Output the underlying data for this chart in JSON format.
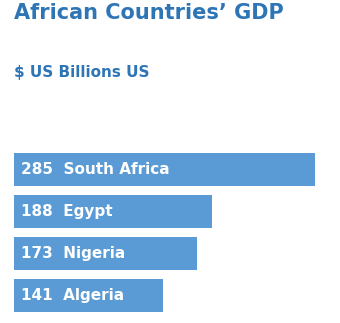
{
  "title": "African Countries’ GDP",
  "subtitle": "$ US Billions US",
  "countries": [
    "South Africa",
    "Egypt",
    "Nigeria",
    "Algeria"
  ],
  "values": [
    285,
    188,
    173,
    141
  ],
  "max_value": 285,
  "bar_color": "#5B9BD5",
  "title_color": "#2E75B6",
  "subtitle_color": "#2E75B6",
  "label_color": "#FFFFFF",
  "background_color": "#FFFFFF",
  "title_fontsize": 15,
  "subtitle_fontsize": 11,
  "label_fontsize": 11
}
